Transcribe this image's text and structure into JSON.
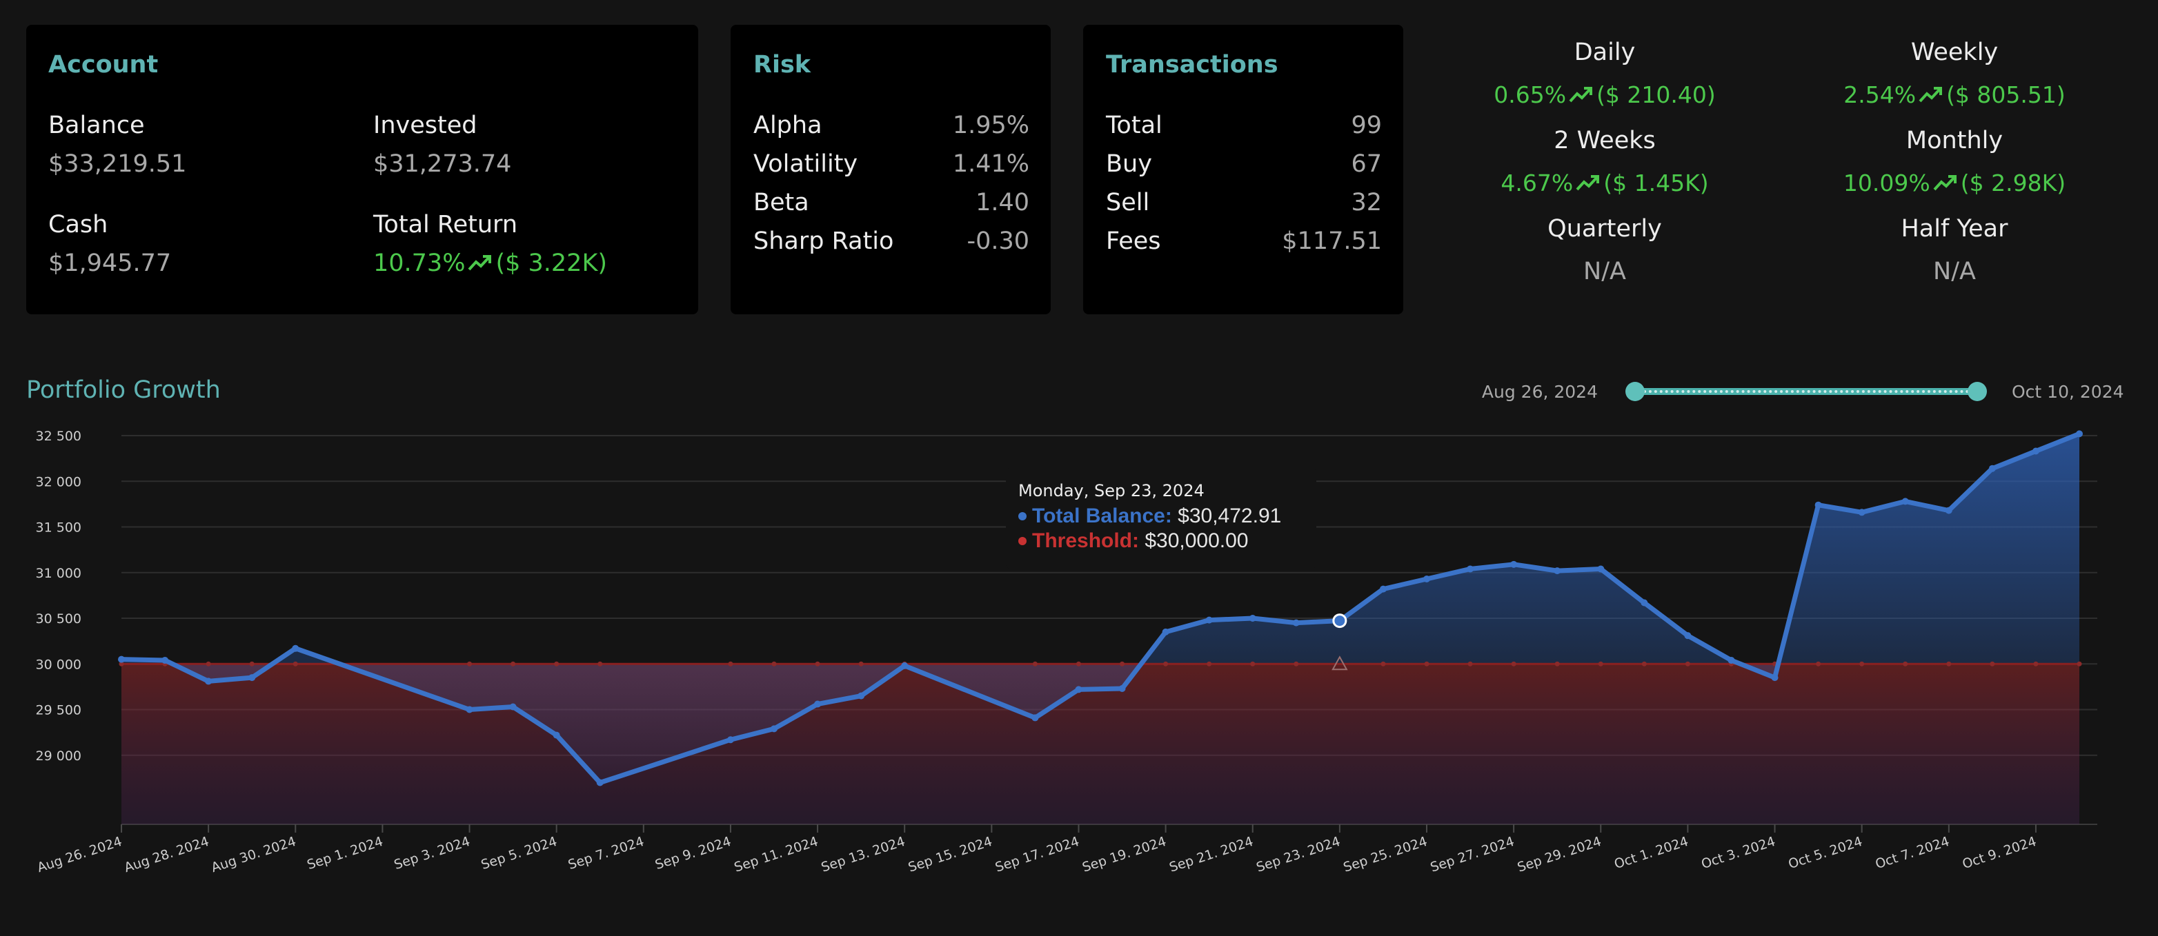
{
  "account": {
    "title": "Account",
    "balance_label": "Balance",
    "balance_value": "$33,219.51",
    "invested_label": "Invested",
    "invested_value": "$31,273.74",
    "cash_label": "Cash",
    "cash_value": "$1,945.77",
    "total_return_label": "Total Return",
    "total_return_pct": "10.73%",
    "total_return_amount": "($ 3.22K)"
  },
  "risk": {
    "title": "Risk",
    "rows": [
      {
        "label": "Alpha",
        "value": "1.95%"
      },
      {
        "label": "Volatility",
        "value": "1.41%"
      },
      {
        "label": "Beta",
        "value": "1.40"
      },
      {
        "label": "Sharp Ratio",
        "value": "-0.30"
      }
    ]
  },
  "transactions": {
    "title": "Transactions",
    "rows": [
      {
        "label": "Total",
        "value": "99"
      },
      {
        "label": "Buy",
        "value": "67"
      },
      {
        "label": "Sell",
        "value": "32"
      },
      {
        "label": "Fees",
        "value": "$117.51"
      }
    ]
  },
  "performance": [
    {
      "title": "Daily",
      "pct": "0.65%",
      "amount": "($ 210.40)"
    },
    {
      "title": "Weekly",
      "pct": "2.54%",
      "amount": "($ 805.51)"
    },
    {
      "title": "2 Weeks",
      "pct": "4.67%",
      "amount": "($ 1.45K)"
    },
    {
      "title": "Monthly",
      "pct": "10.09%",
      "amount": "($ 2.98K)"
    },
    {
      "title": "Quarterly",
      "na": "N/A"
    },
    {
      "title": "Half Year",
      "na": "N/A"
    }
  ],
  "growth": {
    "title": "Portfolio Growth",
    "range_start": "Aug 26, 2024",
    "range_end": "Oct 10, 2024",
    "slider_range": [
      0,
      1
    ]
  },
  "tooltip": {
    "date": "Monday, Sep 23, 2024",
    "balance_label": "Total Balance:",
    "balance_value": "$30,472.91",
    "threshold_label": "Threshold:",
    "threshold_value": "$30,000.00"
  },
  "colors": {
    "accent": "#5fb3b3",
    "positive": "#4cc94c",
    "balance": "#3b73c8",
    "threshold": "#c83232"
  },
  "chart_data": {
    "type": "area",
    "x": [
      "2024-08-26",
      "2024-08-27",
      "2024-08-28",
      "2024-08-29",
      "2024-08-30",
      "2024-09-03",
      "2024-09-04",
      "2024-09-05",
      "2024-09-06",
      "2024-09-09",
      "2024-09-10",
      "2024-09-11",
      "2024-09-12",
      "2024-09-13",
      "2024-09-16",
      "2024-09-17",
      "2024-09-18",
      "2024-09-19",
      "2024-09-20",
      "2024-09-21",
      "2024-09-22",
      "2024-09-23",
      "2024-09-24",
      "2024-09-25",
      "2024-09-26",
      "2024-09-27",
      "2024-09-28",
      "2024-09-29",
      "2024-09-30",
      "2024-10-01",
      "2024-10-02",
      "2024-10-03",
      "2024-10-04",
      "2024-10-05",
      "2024-10-06",
      "2024-10-07",
      "2024-10-08",
      "2024-10-09",
      "2024-10-10"
    ],
    "series": [
      {
        "name": "Total Balance",
        "values": [
          30050,
          30040,
          29810,
          29850,
          30170,
          29500,
          29530,
          29220,
          28700,
          29170,
          29290,
          29560,
          29650,
          29980,
          29410,
          29720,
          29730,
          30350,
          30480,
          30500,
          30450,
          30472.91,
          30820,
          30930,
          31040,
          31090,
          31020,
          31040,
          30670,
          30310,
          30040,
          29850,
          31740,
          31660,
          31780,
          31680,
          32140,
          32330,
          32520
        ]
      },
      {
        "name": "Threshold",
        "values": [
          30000,
          30000,
          30000,
          30000,
          30000,
          30000,
          30000,
          30000,
          30000,
          30000,
          30000,
          30000,
          30000,
          30000,
          30000,
          30000,
          30000,
          30000,
          30000,
          30000,
          30000,
          30000,
          30000,
          30000,
          30000,
          30000,
          30000,
          30000,
          30000,
          30000,
          30000,
          30000,
          30000,
          30000,
          30000,
          30000,
          30000,
          30000,
          30000
        ]
      }
    ],
    "y_ticks": [
      "32 500",
      "32 000",
      "31 500",
      "31 000",
      "30 500",
      "30 000",
      "29 500",
      "29 000"
    ],
    "x_ticks": [
      "Aug 26. 2024",
      "Aug 28. 2024",
      "Aug 30. 2024",
      "Sep 1. 2024",
      "Sep 3. 2024",
      "Sep 5. 2024",
      "Sep 7. 2024",
      "Sep 9. 2024",
      "Sep 11. 2024",
      "Sep 13. 2024",
      "Sep 15. 2024",
      "Sep 17. 2024",
      "Sep 19. 2024",
      "Sep 21. 2024",
      "Sep 23. 2024",
      "Sep 25. 2024",
      "Sep 27. 2024",
      "Sep 29. 2024",
      "Oct 1. 2024",
      "Oct 3. 2024",
      "Oct 5. 2024",
      "Oct 7. 2024",
      "Oct 9. 2024"
    ],
    "ylim": [
      28500,
      32500
    ],
    "xlim": [
      "2024-08-26",
      "2024-10-10"
    ],
    "highlight_date": "2024-09-23",
    "grid": true,
    "legend": "none"
  }
}
